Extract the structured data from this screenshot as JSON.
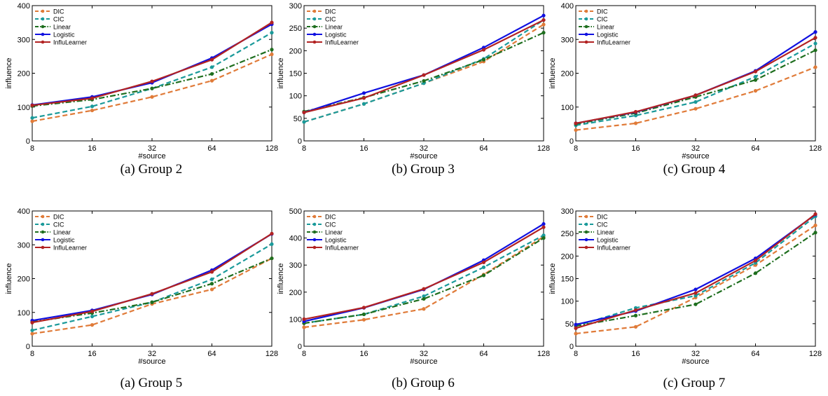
{
  "chart_data": [
    {
      "type": "line",
      "caption": "(a) Group 2",
      "xlabel": "#source",
      "ylabel": "influence",
      "categories": [
        "8",
        "16",
        "32",
        "64",
        "128"
      ],
      "ylim": [
        0,
        400
      ],
      "yticks": [
        0,
        100,
        200,
        300,
        400
      ],
      "legend_position": "top-left",
      "grid": false,
      "series": [
        {
          "name": "DIC",
          "color": "#e07b39",
          "dash": "dashed",
          "values": [
            58,
            90,
            130,
            178,
            256
          ]
        },
        {
          "name": "CIC",
          "color": "#1a9a9a",
          "dash": "dashed",
          "values": [
            68,
            102,
            155,
            218,
            320
          ]
        },
        {
          "name": "Linear",
          "color": "#1e6e1e",
          "dash": "dashdot",
          "values": [
            103,
            122,
            155,
            198,
            270
          ]
        },
        {
          "name": "Logistic",
          "color": "#1010e0",
          "dash": "solid",
          "values": [
            106,
            130,
            172,
            245,
            345
          ]
        },
        {
          "name": "InfluLearner",
          "color": "#b22222",
          "dash": "solid",
          "values": [
            105,
            126,
            176,
            240,
            350
          ]
        }
      ]
    },
    {
      "type": "line",
      "caption": "(b) Group 3",
      "xlabel": "#source",
      "ylabel": "influence",
      "categories": [
        "8",
        "16",
        "32",
        "64",
        "128"
      ],
      "ylim": [
        0,
        300
      ],
      "yticks": [
        0,
        50,
        100,
        150,
        200,
        250,
        300
      ],
      "legend_position": "top-left",
      "grid": false,
      "series": [
        {
          "name": "DIC",
          "color": "#e07b39",
          "dash": "dashed",
          "values": [
            42,
            82,
            128,
            176,
            258
          ]
        },
        {
          "name": "CIC",
          "color": "#1a9a9a",
          "dash": "dashed",
          "values": [
            42,
            82,
            128,
            182,
            268
          ]
        },
        {
          "name": "Linear",
          "color": "#1e6e1e",
          "dash": "dashdot",
          "values": [
            65,
            96,
            133,
            180,
            240
          ]
        },
        {
          "name": "Logistic",
          "color": "#1010e0",
          "dash": "solid",
          "values": [
            63,
            106,
            146,
            207,
            278
          ]
        },
        {
          "name": "InfluLearner",
          "color": "#b22222",
          "dash": "solid",
          "values": [
            63,
            95,
            146,
            202,
            268
          ]
        }
      ]
    },
    {
      "type": "line",
      "caption": "(c) Group 4",
      "xlabel": "#source",
      "ylabel": "influence",
      "categories": [
        "8",
        "16",
        "32",
        "64",
        "128"
      ],
      "ylim": [
        0,
        400
      ],
      "yticks": [
        0,
        100,
        200,
        300,
        400
      ],
      "legend_position": "top-left",
      "grid": false,
      "series": [
        {
          "name": "DIC",
          "color": "#e07b39",
          "dash": "dashed",
          "values": [
            32,
            52,
            95,
            148,
            218
          ]
        },
        {
          "name": "CIC",
          "color": "#1a9a9a",
          "dash": "dashed",
          "values": [
            46,
            75,
            115,
            190,
            288
          ]
        },
        {
          "name": "Linear",
          "color": "#1e6e1e",
          "dash": "dashdot",
          "values": [
            50,
            82,
            130,
            180,
            268
          ]
        },
        {
          "name": "Logistic",
          "color": "#1010e0",
          "dash": "solid",
          "values": [
            52,
            85,
            135,
            207,
            322
          ]
        },
        {
          "name": "InfluLearner",
          "color": "#b22222",
          "dash": "solid",
          "values": [
            52,
            86,
            135,
            205,
            305
          ]
        }
      ]
    },
    {
      "type": "line",
      "caption": "(a) Group 5",
      "xlabel": "#source",
      "ylabel": "influence",
      "categories": [
        "8",
        "16",
        "32",
        "64",
        "128"
      ],
      "ylim": [
        0,
        400
      ],
      "yticks": [
        0,
        100,
        200,
        300,
        400
      ],
      "legend_position": "top-left",
      "grid": false,
      "series": [
        {
          "name": "DIC",
          "color": "#e07b39",
          "dash": "dashed",
          "values": [
            37,
            63,
            125,
            168,
            260
          ]
        },
        {
          "name": "CIC",
          "color": "#1a9a9a",
          "dash": "dashed",
          "values": [
            47,
            88,
            130,
            198,
            302
          ]
        },
        {
          "name": "Linear",
          "color": "#1e6e1e",
          "dash": "dashdot",
          "values": [
            72,
            98,
            130,
            185,
            260
          ]
        },
        {
          "name": "Logistic",
          "color": "#1010e0",
          "dash": "solid",
          "values": [
            76,
            106,
            153,
            225,
            332
          ]
        },
        {
          "name": "InfluLearner",
          "color": "#b22222",
          "dash": "solid",
          "values": [
            70,
            103,
            155,
            220,
            333
          ]
        }
      ]
    },
    {
      "type": "line",
      "caption": "(b) Group 6",
      "xlabel": "#source",
      "ylabel": "influence",
      "categories": [
        "8",
        "16",
        "32",
        "64",
        "128"
      ],
      "ylim": [
        0,
        500
      ],
      "yticks": [
        0,
        100,
        200,
        300,
        400,
        500
      ],
      "legend_position": "top-left",
      "grid": false,
      "series": [
        {
          "name": "DIC",
          "color": "#e07b39",
          "dash": "dashed",
          "values": [
            70,
            98,
            138,
            265,
            405
          ]
        },
        {
          "name": "CIC",
          "color": "#1a9a9a",
          "dash": "dashed",
          "values": [
            85,
            118,
            185,
            292,
            410
          ]
        },
        {
          "name": "Linear",
          "color": "#1e6e1e",
          "dash": "dashdot",
          "values": [
            85,
            118,
            175,
            262,
            400
          ]
        },
        {
          "name": "Logistic",
          "color": "#1010e0",
          "dash": "solid",
          "values": [
            92,
            142,
            210,
            318,
            452
          ]
        },
        {
          "name": "InfluLearner",
          "color": "#b22222",
          "dash": "solid",
          "values": [
            100,
            143,
            212,
            310,
            440
          ]
        }
      ]
    },
    {
      "type": "line",
      "caption": "(c) Group 7",
      "xlabel": "#source",
      "ylabel": "influence",
      "categories": [
        "8",
        "16",
        "32",
        "64",
        "128"
      ],
      "ylim": [
        0,
        300
      ],
      "yticks": [
        0,
        50,
        100,
        150,
        200,
        250,
        300
      ],
      "legend_position": "top-left",
      "grid": false,
      "series": [
        {
          "name": "DIC",
          "color": "#e07b39",
          "dash": "dashed",
          "values": [
            28,
            43,
            108,
            180,
            268
          ]
        },
        {
          "name": "CIC",
          "color": "#1a9a9a",
          "dash": "dashed",
          "values": [
            45,
            85,
            112,
            185,
            288
          ]
        },
        {
          "name": "Linear",
          "color": "#1e6e1e",
          "dash": "dashdot",
          "values": [
            45,
            68,
            93,
            162,
            252
          ]
        },
        {
          "name": "Logistic",
          "color": "#1010e0",
          "dash": "solid",
          "values": [
            48,
            78,
            126,
            195,
            292
          ]
        },
        {
          "name": "InfluLearner",
          "color": "#b22222",
          "dash": "solid",
          "values": [
            40,
            80,
            118,
            190,
            293
          ]
        }
      ]
    }
  ]
}
